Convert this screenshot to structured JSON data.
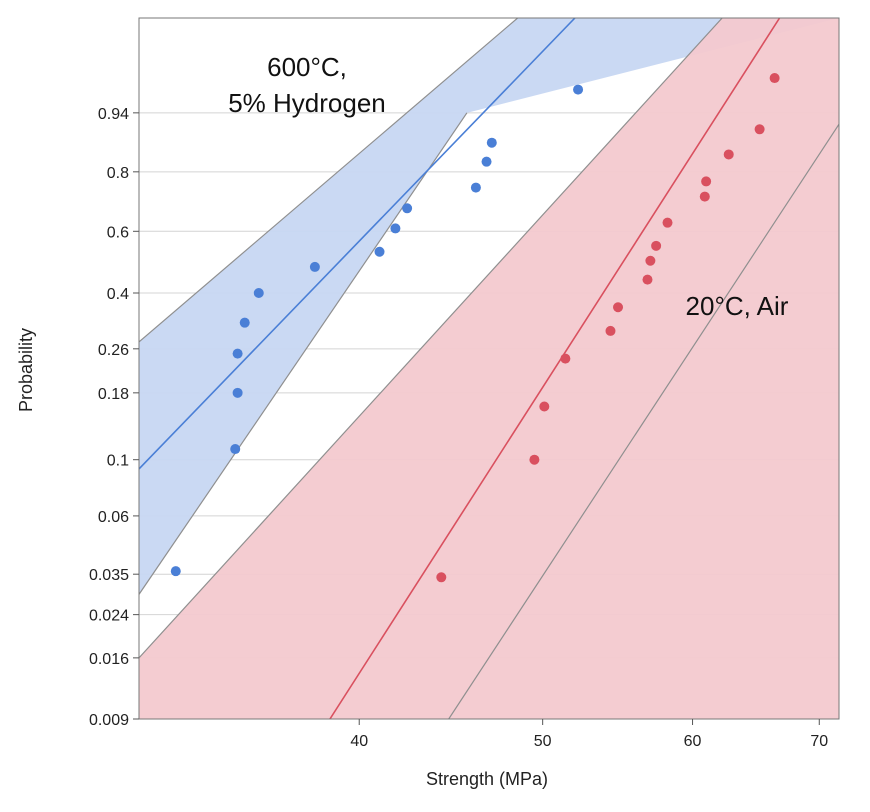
{
  "chart_data": {
    "type": "scatter",
    "xlabel": "Strength (MPa)",
    "ylabel": "Probability",
    "x_scale": "log",
    "y_scale": "weibull-probability",
    "xlim": [
      30.6,
      71.7
    ],
    "ylim": [
      0.009,
      0.999
    ],
    "x_ticks": [
      40,
      50,
      60,
      70
    ],
    "y_ticks": [
      0.009,
      0.016,
      0.024,
      0.035,
      0.06,
      0.1,
      0.18,
      0.26,
      0.4,
      0.6,
      0.8,
      0.94
    ],
    "y_tick_labels": [
      "0.009",
      "0.016",
      "0.024",
      "0.035",
      "0.06",
      "0.1",
      "0.18",
      "0.26",
      "0.4",
      "0.6",
      "0.8",
      "0.94"
    ],
    "grid": true,
    "annotations": [
      {
        "text": "600°C,",
        "series": 0
      },
      {
        "text": "5% Hydrogen",
        "series": 0
      },
      {
        "text": "20°C, Air",
        "series": 1
      }
    ],
    "series": [
      {
        "color": "#4a7fd6",
        "band_color": "#c7d7f2",
        "fit": {
          "line": [
            [
              30.6,
              0.092
            ],
            [
              52.0,
              0.999
            ]
          ],
          "band_low": [
            [
              30.6,
              0.029
            ],
            [
              45.6,
              0.94
            ]
          ],
          "band_high": [
            [
              30.6,
              0.275
            ],
            [
              48.5,
              0.999
            ]
          ]
        },
        "points": [
          [
            32.0,
            0.036
          ],
          [
            34.4,
            0.11
          ],
          [
            34.5,
            0.18
          ],
          [
            34.5,
            0.25
          ],
          [
            34.8,
            0.32
          ],
          [
            35.4,
            0.4
          ],
          [
            37.9,
            0.48
          ],
          [
            41.0,
            0.53
          ],
          [
            41.8,
            0.61
          ],
          [
            42.4,
            0.68
          ],
          [
            46.1,
            0.75
          ],
          [
            46.7,
            0.83
          ],
          [
            47.0,
            0.88
          ],
          [
            52.2,
            0.97
          ]
        ]
      },
      {
        "color": "#d9505f",
        "band_color": "#f3c9cf",
        "fit": {
          "line": [
            [
              38.6,
              0.009
            ],
            [
              66.7,
              0.999
            ]
          ],
          "band_low": [
            [
              44.6,
              0.009
            ],
            [
              71.7,
              0.92
            ]
          ],
          "band_high": [
            [
              30.6,
              0.016
            ],
            [
              62.2,
              0.999
            ]
          ]
        },
        "points": [
          [
            44.2,
            0.034
          ],
          [
            49.5,
            0.1
          ],
          [
            50.1,
            0.16
          ],
          [
            51.4,
            0.24
          ],
          [
            54.3,
            0.3
          ],
          [
            54.8,
            0.36
          ],
          [
            56.8,
            0.44
          ],
          [
            57.0,
            0.5
          ],
          [
            57.4,
            0.55
          ],
          [
            58.2,
            0.63
          ],
          [
            60.9,
            0.72
          ],
          [
            61.0,
            0.77
          ],
          [
            62.7,
            0.85
          ],
          [
            65.1,
            0.91
          ],
          [
            66.3,
            0.98
          ]
        ]
      }
    ]
  }
}
